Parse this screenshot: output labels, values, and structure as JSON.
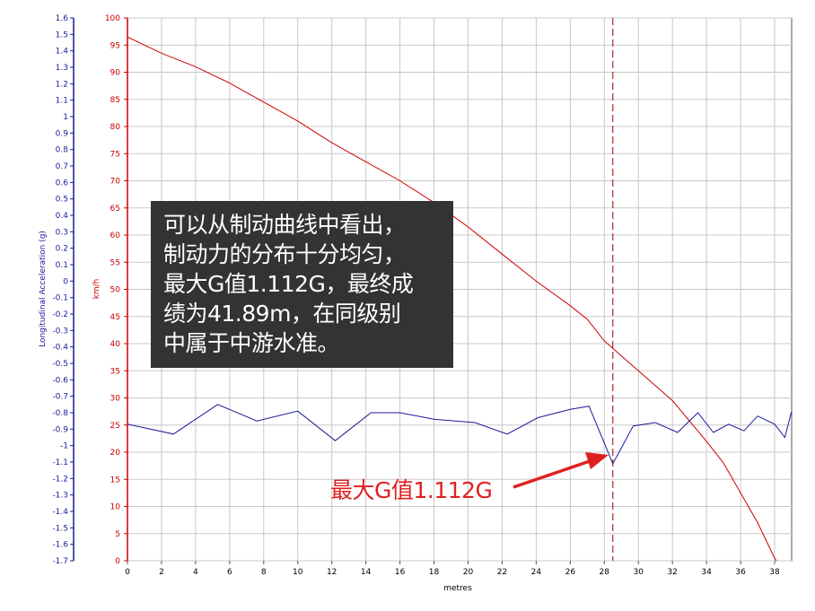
{
  "chart_data": {
    "type": "line",
    "title": "",
    "xlabel": "metres",
    "ylabel_left": "Longitudinal Acceleration (g)",
    "ylabel_right": "km/h",
    "xlim": [
      0,
      39
    ],
    "x_ticks": [
      0,
      2,
      4,
      6,
      8,
      10,
      12,
      14,
      16,
      18,
      20,
      22,
      24,
      26,
      28,
      30,
      32,
      34,
      36,
      38
    ],
    "ylim_speed": [
      0,
      100
    ],
    "speed_ticks": [
      0,
      5,
      10,
      15,
      20,
      25,
      30,
      35,
      40,
      45,
      50,
      55,
      60,
      65,
      70,
      75,
      80,
      85,
      90,
      95,
      100
    ],
    "ylim_accel": [
      -1.7,
      1.6
    ],
    "accel_ticks": [
      1.6,
      1.5,
      1.4,
      1.3,
      1.2,
      1.1,
      1,
      0.9,
      0.8,
      0.7,
      0.6,
      0.5,
      0.4,
      0.3,
      0.2,
      0.1,
      0,
      -0.1,
      -0.2,
      -0.3,
      -0.4,
      -0.5,
      -0.6,
      -0.7,
      -0.8,
      -0.9,
      -1,
      -1.1,
      -1.2,
      -1.3,
      -1.4,
      -1.5,
      -1.6,
      -1.7
    ],
    "grid": true,
    "series": [
      {
        "axis": "speed",
        "color": "#cc0000",
        "x": [
          0,
          2,
          4,
          6,
          8,
          10,
          12,
          14,
          16,
          18,
          20,
          22,
          24,
          26,
          27,
          28,
          30,
          32,
          34,
          35,
          36,
          37,
          38,
          38.5,
          39
        ],
        "values": [
          96.5,
          93.5,
          91,
          88,
          84.5,
          81,
          77,
          73.5,
          70,
          66,
          61.5,
          56.5,
          51.5,
          47,
          44.5,
          40.5,
          35,
          29.5,
          22,
          18,
          12.5,
          7,
          0.5,
          -2,
          -4
        ]
      },
      {
        "axis": "accel",
        "color": "#1a1a99",
        "x": [
          0,
          2.7,
          5.3,
          7.6,
          10,
          12.2,
          14.3,
          16,
          18,
          20.4,
          22.3,
          24.1,
          26,
          27.1,
          28.5,
          29.7,
          31,
          32.3,
          33.5,
          34.4,
          35.3,
          36.2,
          37,
          38,
          38.6,
          39
        ],
        "values": [
          -0.87,
          -0.93,
          -0.75,
          -0.85,
          -0.79,
          -0.97,
          -0.8,
          -0.8,
          -0.84,
          -0.86,
          -0.93,
          -0.83,
          -0.78,
          -0.76,
          -1.11,
          -0.88,
          -0.86,
          -0.92,
          -0.8,
          -0.92,
          -0.87,
          -0.91,
          -0.82,
          -0.87,
          -0.95,
          -0.79
        ]
      }
    ],
    "marker_x": 28.5
  },
  "annotation": {
    "lines": [
      "可以从制动曲线中看出，",
      "制动力的分布十分均匀，",
      "最大G值1.112G，最终成",
      "绩为41.89m，在同级别",
      "中属于中游水准。"
    ]
  },
  "callout": {
    "label": "最大G值1.112G"
  },
  "colors": {
    "speed_axis": "#cc0000",
    "accel_axis": "#1a1a99",
    "grid": "#c8c8c8",
    "marker": "#990000",
    "callout": "#e02020"
  }
}
